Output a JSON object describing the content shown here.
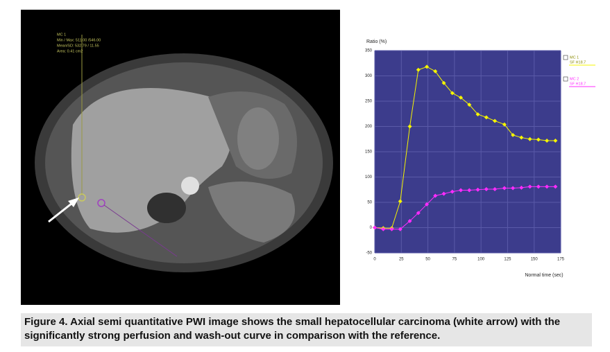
{
  "chart_data": {
    "type": "line",
    "y_label": "Ratio (%)",
    "x_label": "Normal time (sec)",
    "x": [
      0,
      8,
      16,
      24,
      33,
      41,
      49,
      57,
      65,
      73,
      81,
      89,
      97,
      105,
      113,
      122,
      130,
      138,
      146,
      154,
      162,
      170
    ],
    "series": [
      {
        "name": "MC 1",
        "subtitle": "SF H18.7",
        "color": "#f5f500",
        "values": [
          0,
          -1,
          -1,
          52,
          200,
          312,
          318,
          309,
          286,
          266,
          257,
          243,
          224,
          218,
          211,
          204,
          183,
          178,
          175,
          174,
          172,
          172
        ]
      },
      {
        "name": "MC 2",
        "subtitle": "SF H18.7",
        "color": "#ff2bff",
        "values": [
          0,
          -3,
          -3,
          -3,
          13,
          29,
          46,
          63,
          67,
          71,
          74,
          74,
          75,
          76,
          76,
          78,
          78,
          79,
          81,
          81,
          81,
          81
        ]
      }
    ],
    "xlim": [
      0,
      175
    ],
    "xticks": [
      0,
      25,
      50,
      75,
      100,
      125,
      150,
      175
    ],
    "ylim": [
      -50,
      350
    ],
    "yticks": [
      -50,
      0,
      50,
      100,
      150,
      200,
      250,
      300,
      350
    ],
    "grid": true
  },
  "image_annotations": {
    "roi1": [
      "MC 1",
      "Min / Max: 511.00 /546.00",
      "Mean/SD: 532.79 / 11.55",
      "Area: 0.41 cm2"
    ]
  },
  "caption": "Figure 4. Axial semi quantitative PWI image shows the small hepatocellular carcinoma (white arrow) with the significantly strong perfusion and wash-out curve in comparison with the reference."
}
